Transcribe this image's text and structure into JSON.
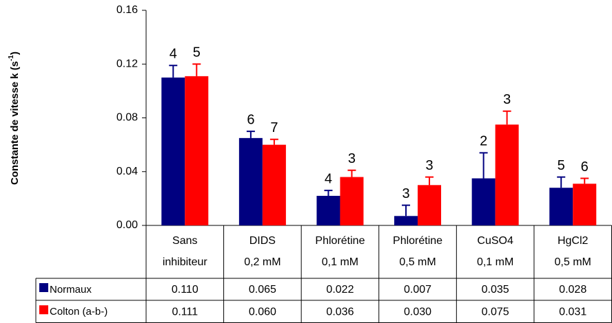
{
  "chart_data": {
    "type": "bar",
    "ylabel": {
      "text": "Constante de vitesse k (s",
      "sup": "-1",
      "end": ")"
    },
    "categories": [
      [
        "Sans",
        "inhibiteur"
      ],
      [
        "DIDS",
        "0,2 mM"
      ],
      [
        "Phlorétine",
        "0,1 mM"
      ],
      [
        "Phlorétine",
        "0,5 mM"
      ],
      [
        "CuSO4",
        "0,1 mM"
      ],
      [
        "HgCl2",
        "0,5 mM"
      ]
    ],
    "series": [
      {
        "name": "Normaux",
        "color": "#000080",
        "values": [
          0.11,
          0.065,
          0.022,
          0.007,
          0.035,
          0.028
        ],
        "value_labels": [
          "0.110",
          "0.065",
          "0.022",
          "0.007",
          "0.035",
          "0.028"
        ],
        "errors": [
          0.009,
          0.005,
          0.004,
          0.008,
          0.019,
          0.008
        ],
        "n": [
          4,
          6,
          4,
          3,
          2,
          5
        ]
      },
      {
        "name": "Colton (a-b-)",
        "color": "#ff0000",
        "values": [
          0.111,
          0.06,
          0.036,
          0.03,
          0.075,
          0.031
        ],
        "value_labels": [
          "0.111",
          "0.060",
          "0.036",
          "0.030",
          "0.075",
          "0.031"
        ],
        "errors": [
          0.009,
          0.004,
          0.005,
          0.006,
          0.01,
          0.004
        ],
        "n": [
          5,
          7,
          3,
          3,
          3,
          6
        ]
      }
    ],
    "ylim": [
      0,
      0.16
    ],
    "yticks": [
      {
        "value": 0,
        "label": "0.00"
      },
      0.04,
      0.08,
      0.12,
      0.16
    ],
    "grid": false
  }
}
